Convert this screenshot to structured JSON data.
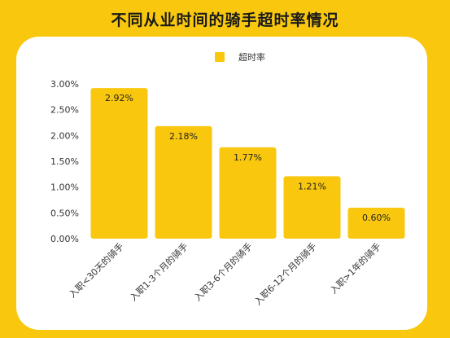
{
  "chart_data": {
    "type": "bar",
    "title": "不同从业时间的骑手超时率情况",
    "categories": [
      "入职<30天的骑手",
      "入职1-3个月的骑手",
      "入职3-6个月的骑手",
      "入职6-12个月的骑手",
      "入职>1年的骑手"
    ],
    "series": [
      {
        "name": "超时率",
        "values": [
          2.92,
          2.18,
          1.77,
          1.21,
          0.6
        ],
        "value_labels": [
          "2.92%",
          "2.18%",
          "1.77%",
          "1.21%",
          "0.60%"
        ]
      }
    ],
    "ylim": [
      0,
      3
    ],
    "yticks": [
      0,
      0.5,
      1,
      1.5,
      2,
      2.5,
      3
    ],
    "ytick_labels": [
      "0.00%",
      "0.50%",
      "1.00%",
      "1.50%",
      "2.00%",
      "2.50%",
      "3.00%"
    ],
    "legend_position": "top-center",
    "grid": false,
    "colors": {
      "bar": "#F9C80E",
      "background": "#F9C80E",
      "card": "#FFFFFF"
    }
  }
}
